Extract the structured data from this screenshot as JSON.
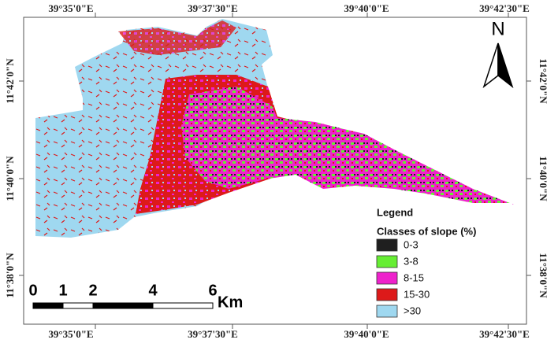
{
  "map": {
    "top_labels": [
      "39°35'0\"E",
      "39°37'30\"E",
      "39°40'0\"E",
      "39°42'30\"E"
    ],
    "bottom_labels": [
      "39°35'0\"E",
      "39°37'30\"E",
      "39°40'0\"E",
      "39°42'30\"E"
    ],
    "left_labels": [
      "11°42'0\"N",
      "11°40'0\"N",
      "11°38'0\"N"
    ],
    "right_labels": [
      "11°42'0\"N",
      "11°40'0\"N",
      "11°38'0\"N"
    ],
    "north": "N",
    "legend": {
      "title": "Legend",
      "subtitle": "Classes of slope (%)",
      "classes": [
        {
          "label": "0-3",
          "color": "#1f1f1f"
        },
        {
          "label": "3-8",
          "color": "#66ee33"
        },
        {
          "label": "8-15",
          "color": "#ee22cc"
        },
        {
          "label": "15-30",
          "color": "#dd1a1a"
        },
        {
          "label": ">30",
          "color": "#9fd8f0"
        }
      ]
    },
    "scale": {
      "ticks": [
        0,
        1,
        2,
        4,
        6
      ],
      "unit": "Km"
    }
  }
}
